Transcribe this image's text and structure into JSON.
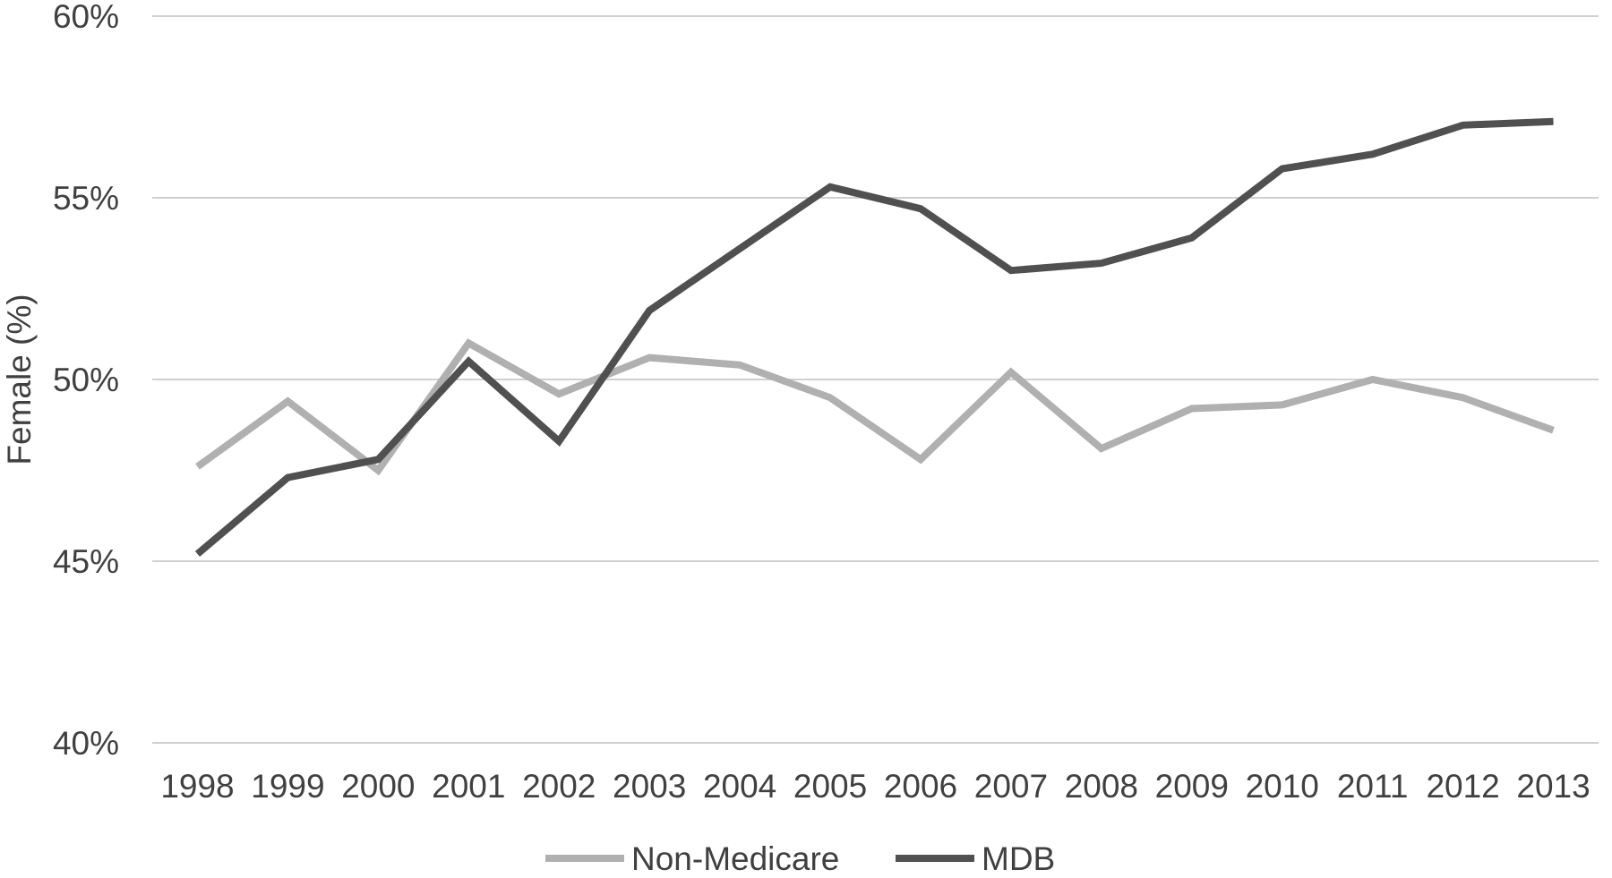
{
  "chart_data": {
    "type": "line",
    "x": [
      "1998",
      "1999",
      "2000",
      "2001",
      "2002",
      "2003",
      "2004",
      "2005",
      "2006",
      "2007",
      "2008",
      "2009",
      "2010",
      "2011",
      "2012",
      "2013"
    ],
    "series": [
      {
        "name": "Non-Medicare",
        "color": "#b0b0b0",
        "values": [
          47.6,
          49.4,
          47.5,
          51.0,
          49.6,
          50.6,
          50.4,
          49.5,
          47.8,
          50.2,
          48.1,
          49.2,
          49.3,
          50.0,
          49.5,
          48.6
        ]
      },
      {
        "name": "MDB",
        "color": "#505050",
        "values": [
          45.2,
          47.3,
          47.8,
          50.5,
          48.3,
          51.9,
          53.6,
          55.3,
          54.7,
          53.0,
          53.2,
          53.9,
          55.8,
          56.2,
          57.0,
          57.1
        ]
      }
    ],
    "ylabel": "Female (%)",
    "xlabel": "",
    "title": "",
    "ylim": [
      40,
      60
    ],
    "yticks": [
      40,
      45,
      50,
      55,
      60
    ],
    "ytick_labels": [
      "40%",
      "45%",
      "50%",
      "55%",
      "60%"
    ],
    "grid": "horizontal",
    "legend_position": "bottom"
  }
}
